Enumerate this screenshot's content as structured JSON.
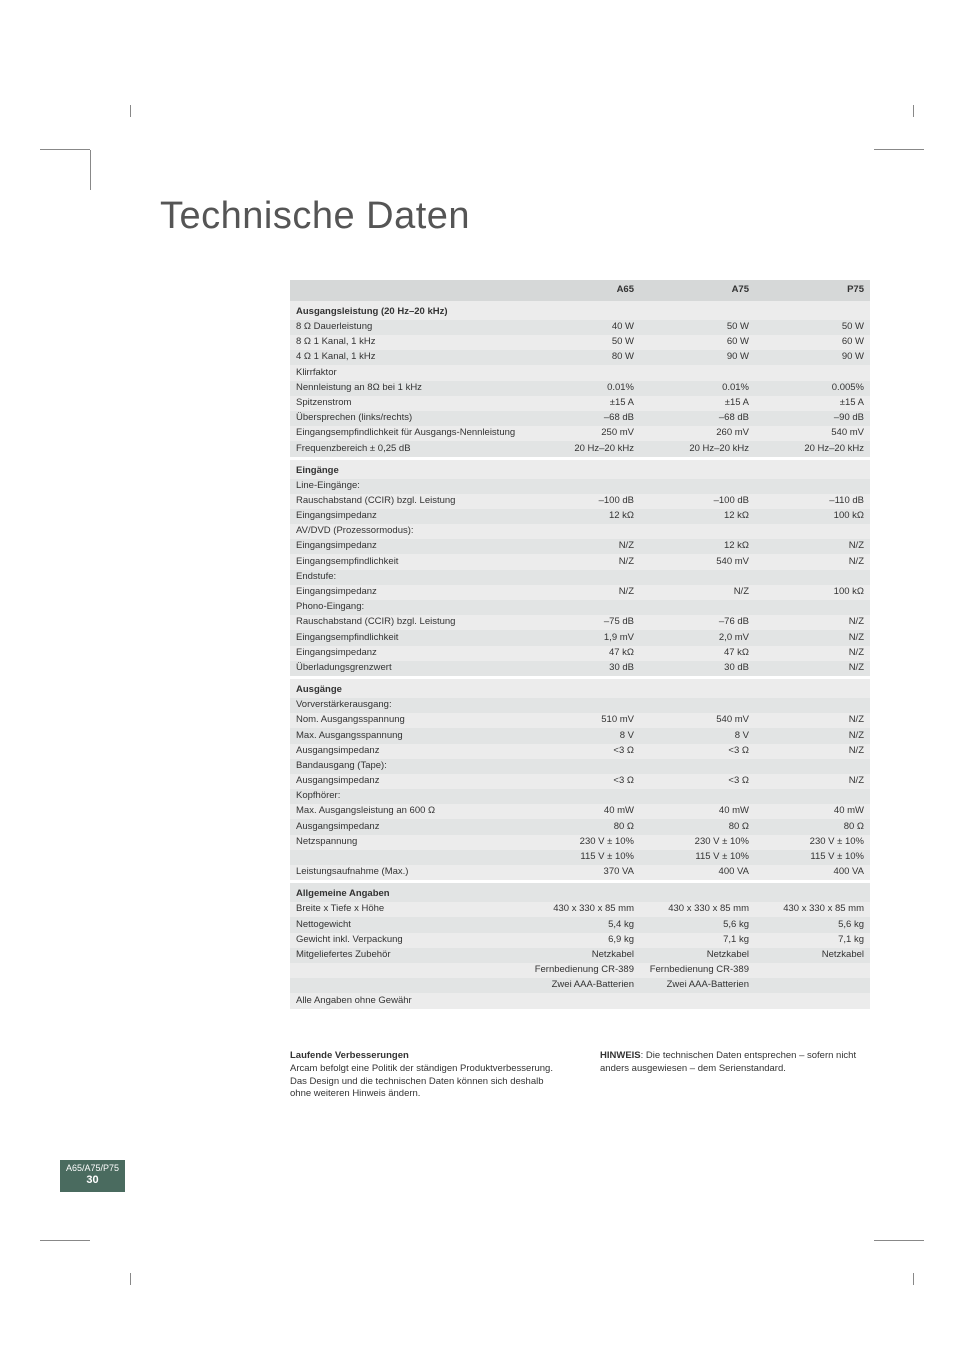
{
  "title": "Technische Daten",
  "columns": {
    "c1": "A65",
    "c2": "A75",
    "c3": "P75"
  },
  "sections": [
    {
      "heading": "Ausgangsleistung (20 Hz–20 kHz)",
      "rows": [
        {
          "label": "8 Ω Dauerleistung",
          "c1": "40 W",
          "c2": "50 W",
          "c3": "50 W"
        },
        {
          "label": "8 Ω 1 Kanal, 1 kHz",
          "c1": "50 W",
          "c2": "60 W",
          "c3": "60 W"
        },
        {
          "label": "4 Ω 1 Kanal, 1 kHz",
          "c1": "80 W",
          "c2": "90 W",
          "c3": "90 W"
        },
        {
          "label": "Klirrfaktor",
          "c1": "",
          "c2": "",
          "c3": ""
        },
        {
          "label": "Nennleistung an 8Ω bei 1 kHz",
          "c1": "0.01%",
          "c2": "0.01%",
          "c3": "0.005%"
        },
        {
          "label": "Spitzenstrom",
          "c1": "±15 A",
          "c2": "±15 A",
          "c3": "±15 A"
        },
        {
          "label": "Übersprechen (links/rechts)",
          "c1": "–68 dB",
          "c2": "–68 dB",
          "c3": "–90 dB"
        },
        {
          "label": "Eingangsempfindlichkeit für Ausgangs-Nennleistung",
          "c1": "250 mV",
          "c2": "260 mV",
          "c3": "540 mV"
        },
        {
          "label": "Frequenzbereich ± 0,25 dB",
          "c1": "20 Hz–20 kHz",
          "c2": "20 Hz–20 kHz",
          "c3": "20 Hz–20 kHz"
        }
      ]
    },
    {
      "heading": "Eingänge",
      "rows": [
        {
          "label": "Line-Eingänge:",
          "c1": "",
          "c2": "",
          "c3": ""
        },
        {
          "label": "Rauschabstand (CCIR) bzgl. Leistung",
          "c1": "–100 dB",
          "c2": "–100 dB",
          "c3": "–110 dB"
        },
        {
          "label": "Eingangsimpedanz",
          "c1": "12 kΩ",
          "c2": "12 kΩ",
          "c3": "100 kΩ"
        },
        {
          "label": "AV/DVD (Prozessormodus):",
          "c1": "",
          "c2": "",
          "c3": ""
        },
        {
          "label": "Eingangsimpedanz",
          "c1": "N/Z",
          "c2": "12 kΩ",
          "c3": "N/Z"
        },
        {
          "label": "Eingangsempfindlichkeit",
          "c1": "N/Z",
          "c2": "540 mV",
          "c3": "N/Z"
        },
        {
          "label": "Endstufe:",
          "c1": "",
          "c2": "",
          "c3": ""
        },
        {
          "label": "Eingangsimpedanz",
          "c1": "N/Z",
          "c2": "N/Z",
          "c3": "100 kΩ"
        },
        {
          "label": "Phono-Eingang:",
          "c1": "",
          "c2": "",
          "c3": ""
        },
        {
          "label": "Rauschabstand (CCIR) bzgl. Leistung",
          "c1": "–75 dB",
          "c2": "–76 dB",
          "c3": "N/Z"
        },
        {
          "label": "Eingangsempfindlichkeit",
          "c1": "1,9 mV",
          "c2": "2,0 mV",
          "c3": "N/Z"
        },
        {
          "label": "Eingangsimpedanz",
          "c1": "47 kΩ",
          "c2": "47 kΩ",
          "c3": "N/Z"
        },
        {
          "label": "Überladungsgrenzwert",
          "c1": "30 dB",
          "c2": "30 dB",
          "c3": "N/Z"
        }
      ]
    },
    {
      "heading": "Ausgänge",
      "rows": [
        {
          "label": "Vorverstärkerausgang:",
          "c1": "",
          "c2": "",
          "c3": ""
        },
        {
          "label": "Nom. Ausgangsspannung",
          "c1": "510 mV",
          "c2": "540 mV",
          "c3": "N/Z"
        },
        {
          "label": "Max. Ausgangsspannung",
          "c1": "8 V",
          "c2": "8 V",
          "c3": "N/Z"
        },
        {
          "label": "Ausgangsimpedanz",
          "c1": "<3 Ω",
          "c2": "<3 Ω",
          "c3": "N/Z"
        },
        {
          "label": "Bandausgang (Tape):",
          "c1": "",
          "c2": "",
          "c3": ""
        },
        {
          "label": "Ausgangsimpedanz",
          "c1": "<3 Ω",
          "c2": "<3 Ω",
          "c3": "N/Z"
        },
        {
          "label": "Kopfhörer:",
          "c1": "",
          "c2": "",
          "c3": ""
        },
        {
          "label": "Max. Ausgangsleistung an 600 Ω",
          "c1": "40 mW",
          "c2": "40 mW",
          "c3": "40 mW"
        },
        {
          "label": "Ausgangsimpedanz",
          "c1": "80 Ω",
          "c2": "80 Ω",
          "c3": "80 Ω"
        },
        {
          "label": "Netzspannung",
          "c1": "230 V ± 10%",
          "c2": "230 V ± 10%",
          "c3": "230 V ± 10%"
        },
        {
          "label": "",
          "c1": "115 V ± 10%",
          "c2": "115 V ± 10%",
          "c3": "115 V ± 10%"
        },
        {
          "label": "Leistungsaufnahme (Max.)",
          "c1": "370 VA",
          "c2": "400 VA",
          "c3": "400 VA"
        }
      ]
    },
    {
      "heading": "Allgemeine Angaben",
      "rows": [
        {
          "label": "Breite x Tiefe x Höhe",
          "c1": "430 x 330 x 85 mm",
          "c2": "430 x 330 x 85 mm",
          "c3": "430 x 330 x 85 mm"
        },
        {
          "label": "Nettogewicht",
          "c1": "5,4 kg",
          "c2": "5,6 kg",
          "c3": "5,6 kg"
        },
        {
          "label": "Gewicht inkl. Verpackung",
          "c1": "6,9 kg",
          "c2": "7,1 kg",
          "c3": "7,1 kg"
        },
        {
          "label": "Mitgeliefertes Zubehör",
          "c1": "Netzkabel",
          "c2": "Netzkabel",
          "c3": "Netzkabel"
        },
        {
          "label": "",
          "c1": "Fernbedienung CR-389",
          "c2": "Fernbedienung CR-389",
          "c3": ""
        },
        {
          "label": "",
          "c1": "Zwei AAA-Batterien",
          "c2": "Zwei AAA-Batterien",
          "c3": ""
        },
        {
          "label": "Alle Angaben ohne Gewähr",
          "c1": "",
          "c2": "",
          "c3": ""
        }
      ]
    }
  ],
  "footer": {
    "left_heading": "Laufende Verbesserungen",
    "left_body": "Arcam befolgt eine Politik der ständigen Produktverbesserung. Das Design und die technischen Daten können sich deshalb ohne weiteren Hinweis ändern.",
    "right_bold": "HINWEIS",
    "right_body": ": Die technischen Daten entsprechen – sofern nicht anders ausgewiesen – dem Serienstandard."
  },
  "badge": {
    "top": "A65/A75/P75",
    "num": "30"
  }
}
